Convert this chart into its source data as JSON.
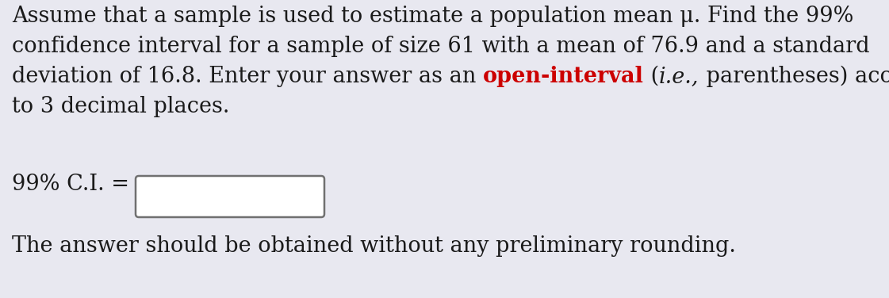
{
  "bg_color": "#e8e8f0",
  "text_color": "#1a1a1a",
  "red_color": "#cc0000",
  "line1": "Assume that a sample is used to estimate a population mean μ. Find the 99%",
  "line2": "confidence interval for a sample of size 61 with a mean of 76.9 and a standard",
  "line3_pre": "deviation of 16.8. Enter your answer as an ",
  "line3_red": "open-interval",
  "line3_space": " (",
  "line3_italic": "i.e.,",
  "line3_post": " parentheses) accurate",
  "line4": "to 3 decimal places.",
  "label": "99% C.I. =",
  "bottom": "The answer should be obtained without any preliminary rounding.",
  "font_size": 19.5,
  "fig_width": 11.21,
  "fig_height": 3.76,
  "dpi": 100
}
